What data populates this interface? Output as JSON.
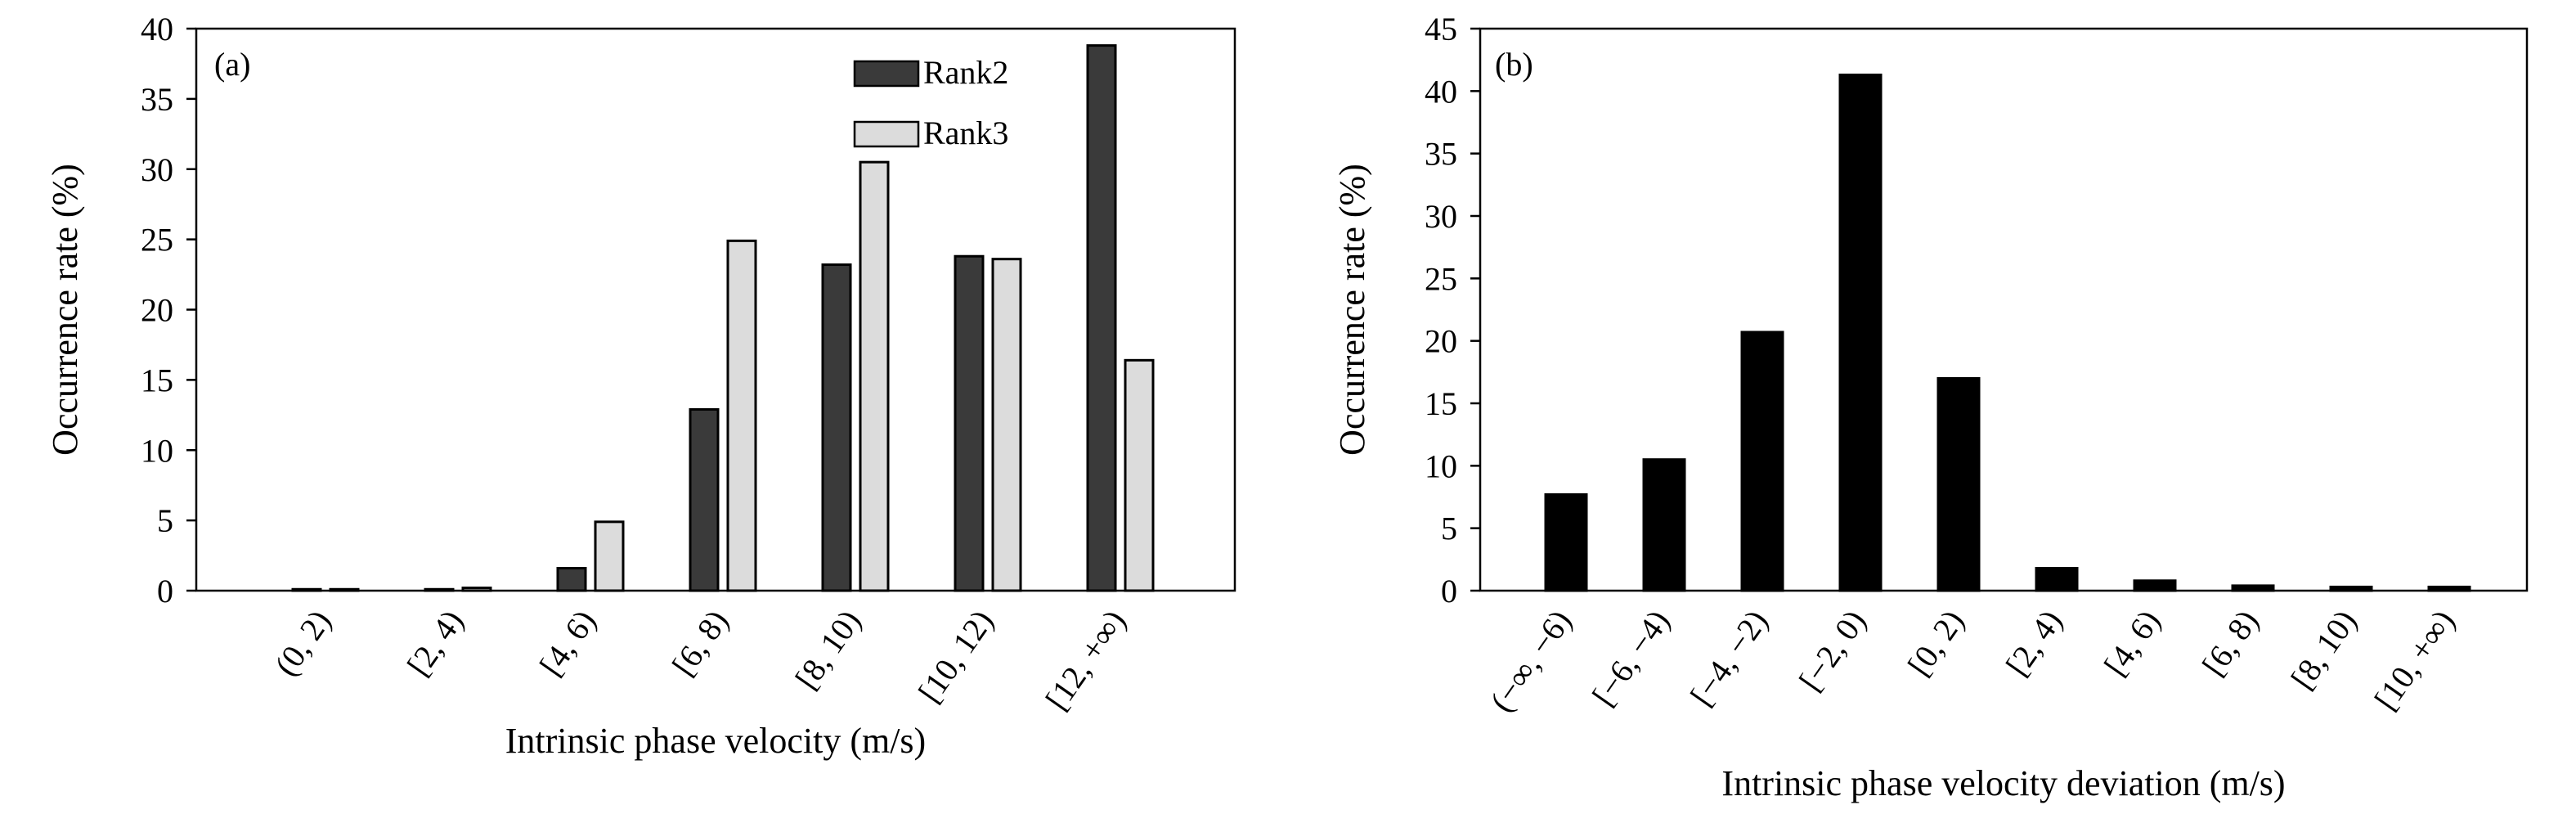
{
  "chart_data": [
    {
      "type": "bar",
      "panel_label": "(a)",
      "title": "",
      "xlabel": "Intrinsic phase velocity (m/s)",
      "ylabel": "Occurrence rate (%)",
      "ylim": [
        0,
        40
      ],
      "yticks": [
        "0",
        "5",
        "10",
        "15",
        "20",
        "25",
        "30",
        "35",
        "40"
      ],
      "categories": [
        "(0, 2)",
        "[2, 4)",
        "[4, 6)",
        "[6, 8)",
        "[8, 10)",
        "[10, 12)",
        "[12, +∞)"
      ],
      "series": [
        {
          "name": "Rank2",
          "color": "#3a3a3a",
          "values": [
            0.1,
            0.1,
            1.6,
            12.9,
            23.2,
            23.8,
            38.8
          ]
        },
        {
          "name": "Rank3",
          "color": "#dcdcdc",
          "values": [
            0.1,
            0.2,
            4.9,
            24.9,
            30.5,
            23.6,
            16.4
          ]
        }
      ],
      "legend_position": "top-right",
      "grid": false
    },
    {
      "type": "bar",
      "panel_label": "(b)",
      "title": "",
      "xlabel": "Intrinsic phase velocity deviation (m/s)",
      "ylabel": "Occurrence rate (%)",
      "ylim": [
        0,
        45
      ],
      "yticks": [
        "0",
        "5",
        "10",
        "15",
        "20",
        "25",
        "30",
        "35",
        "40",
        "45"
      ],
      "categories": [
        "(−∞, −6)",
        "[−6, −4)",
        "[−4, −2)",
        "[−2, 0)",
        "[0, 2)",
        "[2, 4)",
        "[4, 6)",
        "[6, 8)",
        "[8, 10)",
        "[10, +∞)"
      ],
      "series": [
        {
          "name": "",
          "color": "#000000",
          "values": [
            7.7,
            10.5,
            20.7,
            41.3,
            17.0,
            1.8,
            0.8,
            0.4,
            0.3,
            0.3
          ]
        }
      ],
      "grid": false
    }
  ]
}
